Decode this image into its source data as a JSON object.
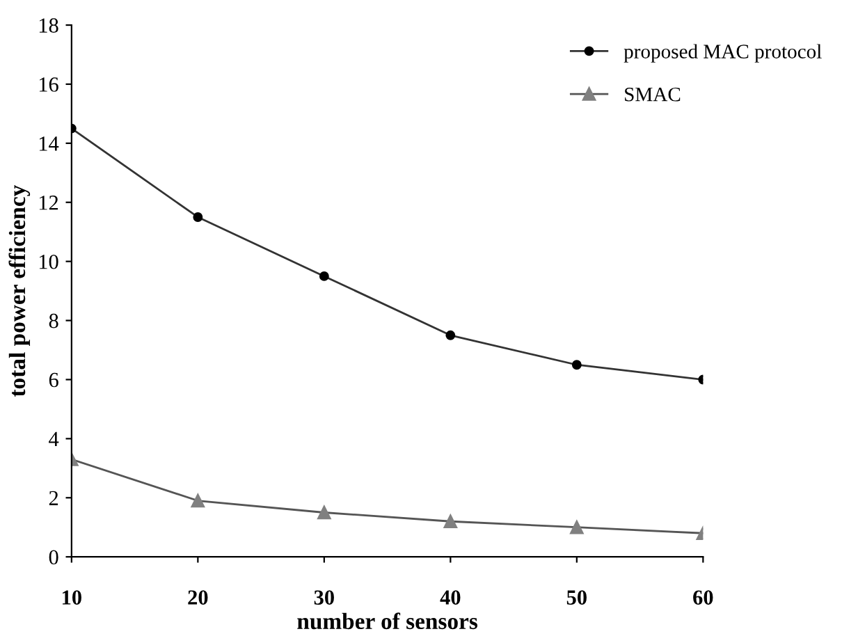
{
  "chart_data": {
    "type": "line",
    "xlabel": "number of sensors",
    "ylabel": "total power efficiency",
    "x": [
      10,
      20,
      30,
      40,
      50,
      60
    ],
    "xlim": [
      10,
      60
    ],
    "xticks": [
      10,
      20,
      30,
      40,
      50,
      60
    ],
    "ylim": [
      0,
      18
    ],
    "yticks": [
      0,
      2,
      4,
      6,
      8,
      10,
      12,
      14,
      16,
      18
    ],
    "grid": false,
    "legend": "top right",
    "series": [
      {
        "name": "proposed MAC protocol",
        "color": "#000000",
        "marker": "circle",
        "values": [
          14.5,
          11.5,
          9.5,
          7.5,
          6.5,
          6.0
        ]
      },
      {
        "name": "SMAC",
        "color": "#808080",
        "marker": "triangle",
        "values": [
          3.3,
          1.9,
          1.5,
          1.2,
          1.0,
          0.8
        ]
      }
    ]
  }
}
